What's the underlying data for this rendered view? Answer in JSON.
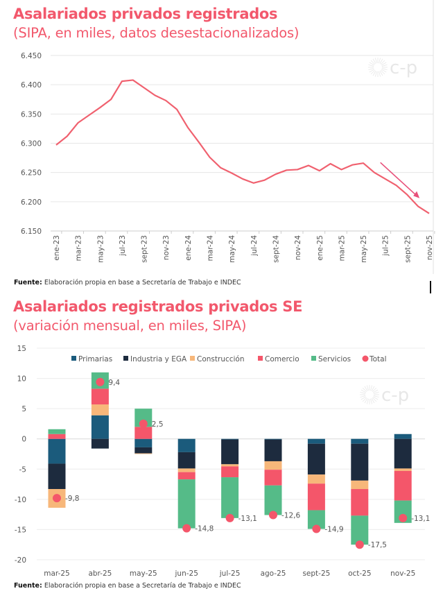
{
  "chart_data": [
    {
      "type": "line",
      "title": "Asalariados privados registrados",
      "subtitle": "(SIPA, en miles, datos desestacionalizados)",
      "source_label": "Fuente:",
      "source_text": "Elaboración propia en base a Secretaría de Trabajo e INDEC",
      "watermark": "c-p",
      "ylim": [
        6150,
        6450
      ],
      "yticks": [
        6150,
        6200,
        6250,
        6300,
        6350,
        6400,
        6450
      ],
      "ytick_labels": [
        "6.150",
        "6.200",
        "6.250",
        "6.300",
        "6.350",
        "6.400",
        "6.450"
      ],
      "grid": true,
      "color": "#f0616f",
      "arrow_annotation": "downward trend arrow from jul-25 to oct-25",
      "x": [
        "ene-23",
        "feb-23",
        "mar-23",
        "abr-23",
        "may-23",
        "jun-23",
        "jul-23",
        "ago-23",
        "sept-23",
        "oct-23",
        "nov-23",
        "dic-23",
        "ene-24",
        "feb-24",
        "mar-24",
        "abr-24",
        "may-24",
        "jun-24",
        "jul-24",
        "ago-24",
        "sept-24",
        "oct-24",
        "nov-24",
        "dic-24",
        "ene-25",
        "feb-25",
        "mar-25",
        "abr-25",
        "may-25",
        "jun-25",
        "jul-25",
        "ago-25",
        "sept-25",
        "oct-25",
        "nov-25"
      ],
      "xtick_labels": [
        "ene-23",
        "mar-23",
        "may-23",
        "jul-23",
        "sept-23",
        "nov-23",
        "ene-24",
        "mar-24",
        "may-24",
        "jul-24",
        "sept-24",
        "nov-24",
        "ene-25",
        "mar-25",
        "may-25",
        "jul-25",
        "sept-25",
        "nov-25"
      ],
      "values": [
        6297,
        6312,
        6335,
        6348,
        6361,
        6375,
        6406,
        6408,
        6395,
        6382,
        6373,
        6358,
        6327,
        6302,
        6276,
        6258,
        6249,
        6239,
        6232,
        6237,
        6247,
        6254,
        6255,
        6262,
        6253,
        6265,
        6255,
        6263,
        6266,
        6250,
        6239,
        6228,
        6212,
        6192,
        6180
      ]
    },
    {
      "type": "bar",
      "stacked": true,
      "title": "Asalariados registrados privados SE",
      "subtitle": "(variación mensual, en miles, SIPA)",
      "source_label": "Fuente:",
      "source_text": "Elaboración propia en base a Secretaría de Trabajo e INDEC",
      "watermark": "c-p",
      "ylim": [
        -20,
        15
      ],
      "yticks": [
        -20,
        -15,
        -10,
        -5,
        0,
        5,
        10,
        15
      ],
      "grid": true,
      "legend_position": "top",
      "categories": [
        "mar-25",
        "abr-25",
        "may-25",
        "jun-25",
        "jul-25",
        "ago-25",
        "sept-25",
        "oct-25",
        "nov-25"
      ],
      "series": [
        {
          "name": "Primarias",
          "color": "#1b5b7c",
          "values": [
            -4.1,
            3.9,
            -1.4,
            -2.2,
            -0.1,
            -0.1,
            -0.8,
            -0.8,
            0.8
          ]
        },
        {
          "name": "Industria y EGA",
          "color": "#1d2b3e",
          "values": [
            -4.2,
            -1.6,
            -1.0,
            -2.7,
            -4.1,
            -3.6,
            -5.1,
            -6.1,
            -4.9
          ]
        },
        {
          "name": "Construcción",
          "color": "#f7b77a",
          "values": [
            -3.1,
            1.8,
            -0.1,
            -0.6,
            -0.35,
            -1.4,
            -1.5,
            -1.4,
            -0.4
          ]
        },
        {
          "name": "Comercio",
          "color": "#f4566a",
          "values": [
            0.8,
            2.6,
            2.0,
            -1.2,
            -1.8,
            -2.6,
            -4.4,
            -4.4,
            -4.9
          ]
        },
        {
          "name": "Servicios",
          "color": "#55bb88",
          "values": [
            0.8,
            2.7,
            3.0,
            -8.1,
            -6.75,
            -4.9,
            -3.1,
            -4.8,
            -3.7
          ]
        }
      ],
      "total": {
        "name": "Total",
        "color": "#f4566a",
        "values": [
          -9.8,
          9.4,
          2.5,
          -14.8,
          -13.1,
          -12.6,
          -14.9,
          -17.5,
          -13.1
        ],
        "labels": [
          "-9,8",
          "9,4",
          "2,5",
          "-14,8",
          "-13,1",
          "-12,6",
          "-14,9",
          "-17,5",
          "-13,1"
        ]
      }
    }
  ]
}
